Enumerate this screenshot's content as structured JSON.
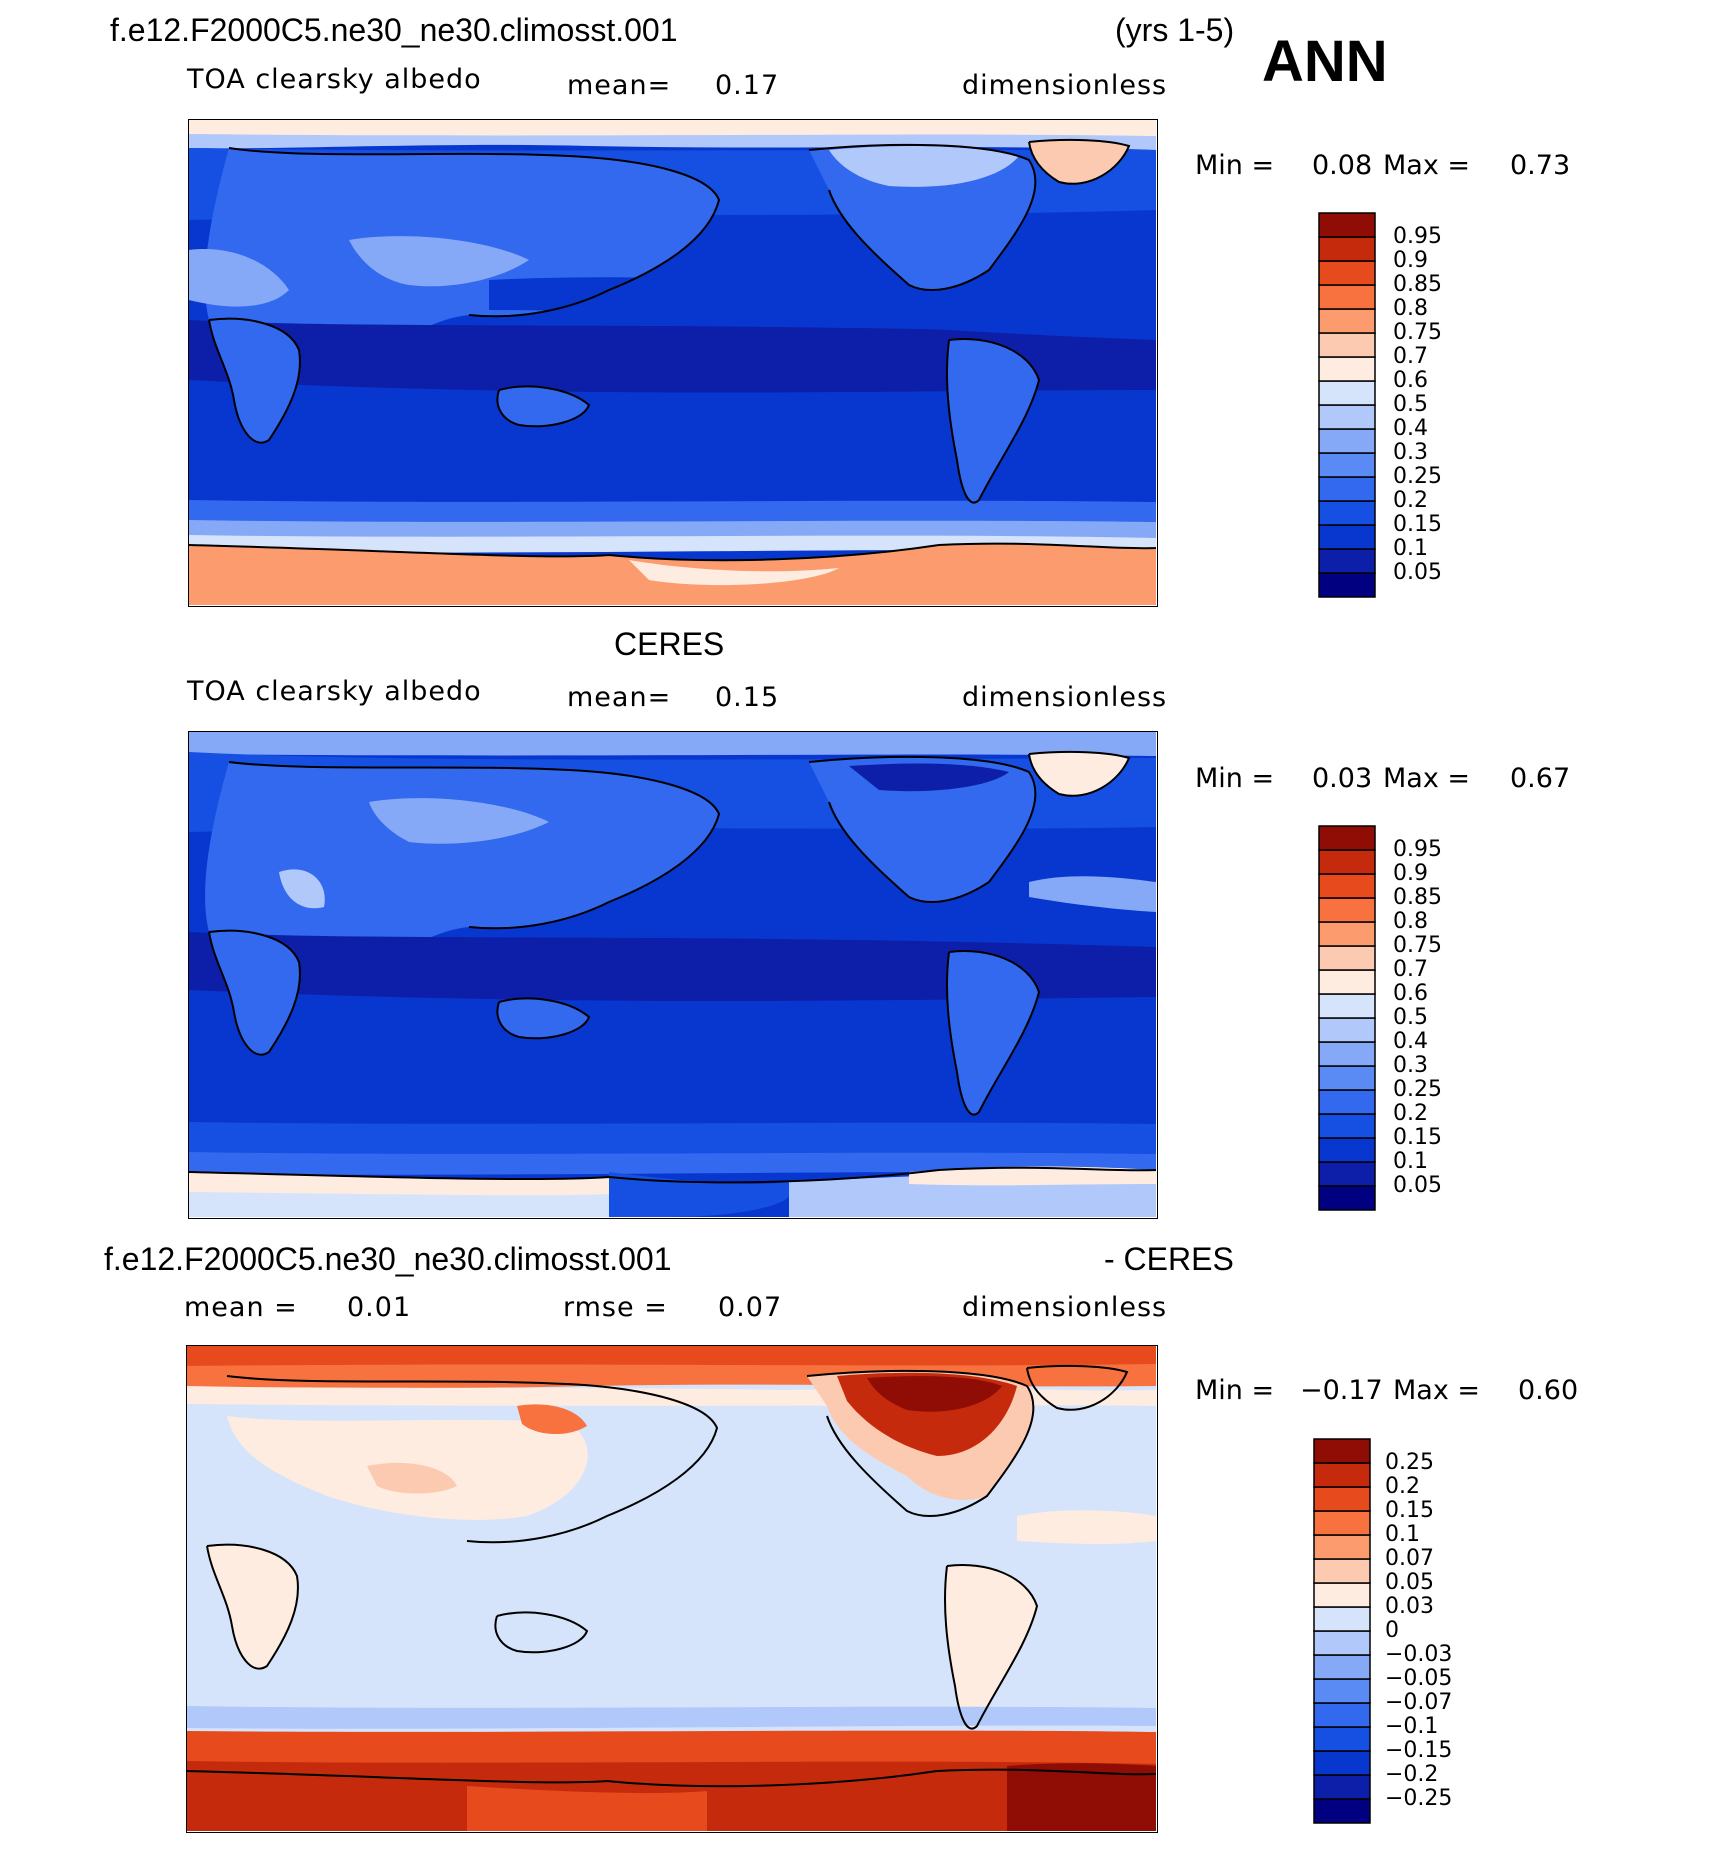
{
  "header": {
    "case_name": "f.e12.F2000C5.ne30_ne30.climosst.001",
    "years": "(yrs 1-5)",
    "season": "ANN"
  },
  "colors": {
    "blues": [
      "#000080",
      "#0d1fa8",
      "#0837cf",
      "#1550e3",
      "#3269ee",
      "#5a8af4",
      "#86a9f7",
      "#b0c8fa",
      "#d5e4fb"
    ],
    "reds": [
      "#fdecdf",
      "#fccab0",
      "#fc9c6e",
      "#f8723f",
      "#e74a1d",
      "#c52a0d",
      "#8f0d05"
    ],
    "diff_cb": [
      "#000080",
      "#0d1fa8",
      "#0837cf",
      "#1550e3",
      "#3269ee",
      "#5a8af4",
      "#86a9f7",
      "#b0c8fa",
      "#d5e4fb",
      "#fdecdf",
      "#fccab0",
      "#fc9c6e",
      "#f8723f",
      "#e74a1d",
      "#c52a0d",
      "#8f0d05"
    ]
  },
  "panels": [
    {
      "title": "f.e12.F2000C5.ne30_ne30.climosst.001",
      "title_right": "(yrs 1-5)",
      "variable": "TOA clearsky albedo",
      "stat1_label": "mean=",
      "stat1_value": "0.17",
      "units": "dimensionless",
      "min_label": "Min =",
      "min_value": "0.08",
      "max_label": "Max =",
      "max_value": "0.73",
      "colorbar_levels": [
        "0.95",
        "0.9",
        "0.85",
        "0.8",
        "0.75",
        "0.7",
        "0.6",
        "0.5",
        "0.4",
        "0.3",
        "0.25",
        "0.2",
        "0.15",
        "0.1",
        "0.05"
      ]
    },
    {
      "title": "CERES",
      "variable": "TOA clearsky albedo",
      "stat1_label": "mean=",
      "stat1_value": "0.15",
      "units": "dimensionless",
      "min_label": "Min =",
      "min_value": "0.03",
      "max_label": "Max =",
      "max_value": "0.67",
      "colorbar_levels": [
        "0.95",
        "0.9",
        "0.85",
        "0.8",
        "0.75",
        "0.7",
        "0.6",
        "0.5",
        "0.4",
        "0.3",
        "0.25",
        "0.2",
        "0.15",
        "0.1",
        "0.05"
      ]
    },
    {
      "title": "f.e12.F2000C5.ne30_ne30.climosst.001",
      "title_right": "- CERES",
      "stat1_label": "mean =",
      "stat1_value": "0.01",
      "stat2_label": "rmse =",
      "stat2_value": "0.07",
      "units": "dimensionless",
      "min_label": "Min =",
      "min_value": "−0.17",
      "max_label": "Max =",
      "max_value": "0.60",
      "colorbar_levels": [
        "0.25",
        "0.2",
        "0.15",
        "0.1",
        "0.07",
        "0.05",
        "0.03",
        "0",
        "−0.03",
        "−0.05",
        "−0.07",
        "−0.1",
        "−0.15",
        "−0.2",
        "−0.25"
      ]
    }
  ]
}
